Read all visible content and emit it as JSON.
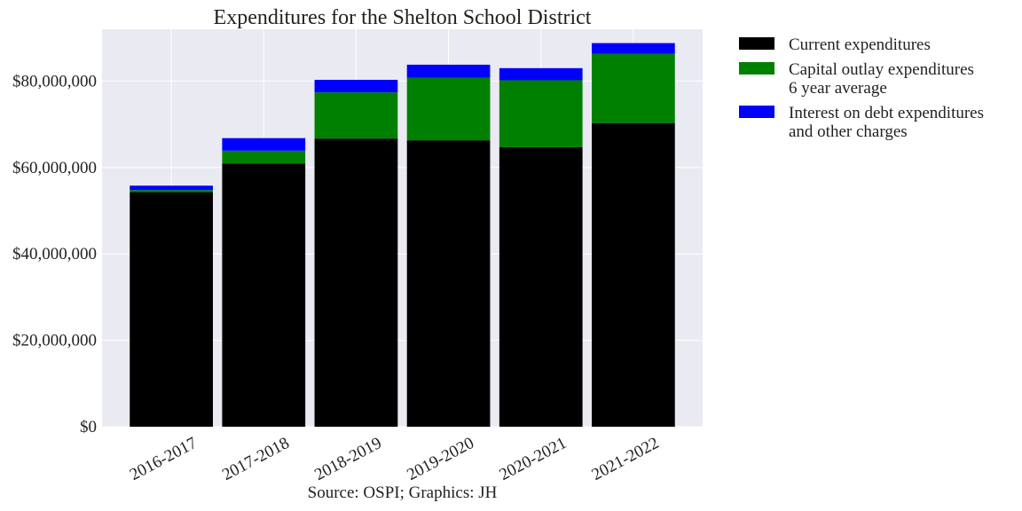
{
  "chart_data": {
    "type": "bar",
    "stacked": true,
    "title": "Expenditures for the Shelton School District",
    "xlabel": "",
    "ylabel": "",
    "caption": "Source: OSPI; Graphics: JH",
    "categories": [
      "2016-2017",
      "2017-2018",
      "2018-2019",
      "2019-2020",
      "2020-2021",
      "2021-2022"
    ],
    "series": [
      {
        "name": "Current expenditures",
        "color": "#000000",
        "values": [
          54300000,
          60900000,
          66700000,
          66300000,
          64700000,
          70300000
        ]
      },
      {
        "name": "Capital outlay expenditures\n6 year average",
        "color": "#008000",
        "values": [
          500000,
          3000000,
          10700000,
          14500000,
          15500000,
          16000000
        ]
      },
      {
        "name": "Interest on debt expenditures\nand other charges",
        "color": "#0000ff",
        "values": [
          1000000,
          2900000,
          2900000,
          3000000,
          2800000,
          2500000
        ]
      }
    ],
    "ylim": [
      0,
      92000000
    ],
    "yticks": [
      0,
      20000000,
      40000000,
      60000000,
      80000000
    ],
    "ytick_labels": [
      "$0",
      "$20,000,000",
      "$40,000,000",
      "$60,000,000",
      "$80,000,000"
    ],
    "grid": true,
    "legend_position": "outside-right-top",
    "background_color": "#eaeaf2",
    "grid_color": "#ffffff"
  }
}
